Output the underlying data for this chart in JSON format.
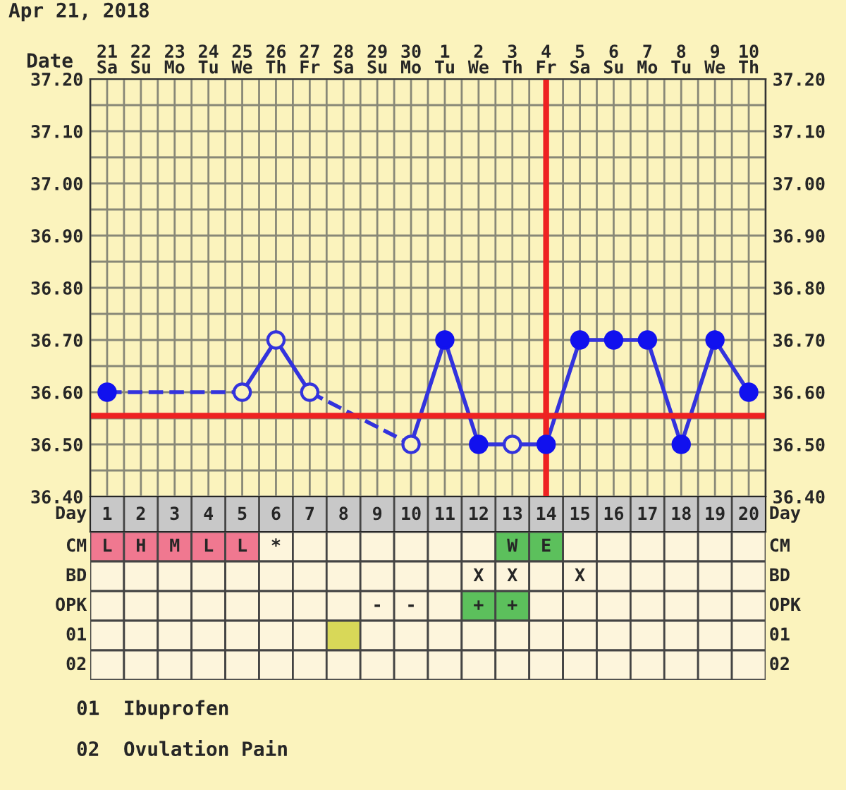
{
  "chart_data": [
    {
      "type": "line",
      "title": "Apr 21, 2018",
      "xlabel": "Date",
      "categories": [
        "21\nSa",
        "22\nSu",
        "23\nMo",
        "24\nTu",
        "25\nWe",
        "26\nTh",
        "27\nFr",
        "28\nSa",
        "29\nSu",
        "30\nMo",
        "1\nTu",
        "2\nWe",
        "3\nTh",
        "4\nFr",
        "5\nSa",
        "6\nSu",
        "7\nMo",
        "8\nTu",
        "9\nWe",
        "10\nTh"
      ],
      "series": [
        {
          "type": "line",
          "color": "#3333dd",
          "marker": "none",
          "line_style": "solid",
          "values": [
            36.6,
            null,
            null,
            null,
            36.6,
            36.7,
            36.6,
            null,
            null,
            36.5,
            36.7,
            36.5,
            36.5,
            36.5,
            36.7,
            36.7,
            36.7,
            36.5,
            36.7,
            36.6
          ]
        },
        {
          "type": "scatter",
          "color": "#1111ee",
          "marker": "circle",
          "values": [
            36.6,
            null,
            null,
            null,
            null,
            null,
            null,
            null,
            null,
            null,
            36.7,
            36.5,
            null,
            36.5,
            36.7,
            36.7,
            36.7,
            36.5,
            36.7,
            36.6
          ]
        },
        {
          "type": "scatter",
          "color": "#3333dd",
          "marker": "circle",
          "colors": [
            "#fbf3bd",
            "#fbf3bd",
            "#fbf3bd",
            "#fbf3bd",
            "#fbf3bd",
            "#fbf3bd",
            "#fbf3bd",
            "#fbf3bd",
            "#fbf3bd",
            "#fbf3bd",
            "#fbf3bd",
            "#fbf3bd",
            "#fbf3bd",
            "#fbf3bd",
            "#fbf3bd",
            "#fbf3bd",
            "#fbf3bd",
            "#fbf3bd",
            "#fbf3bd",
            "#fbf3bd"
          ],
          "values": [
            null,
            null,
            null,
            null,
            36.6,
            36.7,
            36.6,
            null,
            null,
            36.5,
            null,
            null,
            36.5,
            null,
            null,
            null,
            null,
            null,
            null,
            null
          ]
        }
      ],
      "ylim": [
        36.4,
        37.2
      ],
      "yticks": [
        {
          "value": 36.4,
          "label": "36.40"
        },
        {
          "value": 36.45,
          "label": null
        },
        {
          "value": 36.5,
          "label": "36.50"
        },
        {
          "value": 36.55,
          "label": null
        },
        {
          "value": 36.6,
          "label": "36.60"
        },
        {
          "value": 36.65,
          "label": null
        },
        {
          "value": 36.7,
          "label": "36.70"
        },
        {
          "value": 36.75,
          "label": null
        },
        {
          "value": 36.8,
          "label": "36.80"
        },
        {
          "value": 36.85,
          "label": null
        },
        {
          "value": 36.9,
          "label": "36.90"
        },
        {
          "value": 36.95,
          "label": null
        },
        {
          "value": 37.0,
          "label": "37.00"
        },
        {
          "value": 37.05,
          "label": null
        },
        {
          "value": 37.1,
          "label": "37.10"
        },
        {
          "value": 37.15,
          "label": null
        },
        {
          "value": 37.2,
          "label": "37.20"
        }
      ],
      "y2lim": [
        36.4,
        37.2
      ],
      "y2ticks": [
        {
          "value": 36.4,
          "label": "36.40"
        },
        {
          "value": 36.45,
          "label": null
        },
        {
          "value": 36.5,
          "label": "36.50"
        },
        {
          "value": 36.55,
          "label": null
        },
        {
          "value": 36.6,
          "label": "36.60"
        },
        {
          "value": 36.65,
          "label": null
        },
        {
          "value": 36.7,
          "label": "36.70"
        },
        {
          "value": 36.75,
          "label": null
        },
        {
          "value": 36.8,
          "label": "36.80"
        },
        {
          "value": 36.85,
          "label": null
        },
        {
          "value": 36.9,
          "label": "36.90"
        },
        {
          "value": 36.95,
          "label": null
        },
        {
          "value": 37.0,
          "label": "37.00"
        },
        {
          "value": 37.05,
          "label": null
        },
        {
          "value": 37.1,
          "label": "37.10"
        },
        {
          "value": 37.15,
          "label": null
        },
        {
          "value": 37.2,
          "label": "37.20"
        }
      ],
      "grid": true,
      "ref_lines": [
        {
          "axis": "y",
          "value": 36.555,
          "color": "#ee2222"
        },
        {
          "axis": "x",
          "value": "4\nFr",
          "color": "#ee2222"
        }
      ]
    },
    {
      "type": "heatmap",
      "xlabel": "Day",
      "cells": [
        [
          null,
          null,
          null,
          null,
          null,
          null,
          null,
          null,
          null,
          null,
          null,
          null,
          null,
          null,
          null,
          null,
          null,
          null,
          null,
          null
        ],
        [
          null,
          null,
          null,
          null,
          null,
          null,
          null,
          null,
          null,
          null,
          null,
          null,
          null,
          null,
          null,
          null,
          null,
          null,
          null,
          null
        ],
        [
          null,
          null,
          null,
          null,
          null,
          null,
          null,
          null,
          null,
          null,
          null,
          null,
          null,
          null,
          null,
          null,
          null,
          null,
          null,
          null
        ],
        [
          null,
          null,
          null,
          null,
          null,
          null,
          null,
          null,
          null,
          null,
          null,
          null,
          null,
          null,
          null,
          null,
          null,
          null,
          null,
          null
        ],
        [
          null,
          null,
          null,
          null,
          null,
          null,
          null,
          null,
          null,
          null,
          null,
          null,
          null,
          null,
          null,
          null,
          null,
          null,
          null,
          null
        ]
      ],
      "categories": [
        "1",
        "2",
        "3",
        "4",
        "5",
        "6",
        "7",
        "8",
        "9",
        "10",
        "11",
        "12",
        "13",
        "14",
        "15",
        "16",
        "17",
        "18",
        "19",
        "20"
      ],
      "y_categories": [
        "CM",
        "BD",
        "OPK",
        "01",
        "02"
      ],
      "y2_categories": [
        "CM",
        "BD",
        "OPK",
        "01",
        "02"
      ],
      "color": "#fdf5dc",
      "cell_labels": [
        [
          "L",
          "H",
          "M",
          "L",
          "L",
          "*",
          null,
          null,
          null,
          null,
          null,
          null,
          "W",
          "E",
          null,
          null,
          null,
          null,
          null,
          null
        ],
        [
          null,
          null,
          null,
          null,
          null,
          null,
          null,
          null,
          null,
          null,
          null,
          "X",
          "X",
          null,
          "X",
          null,
          null,
          null,
          null,
          null
        ],
        [
          null,
          null,
          null,
          null,
          null,
          null,
          null,
          null,
          "-",
          "-",
          null,
          "+",
          "+",
          null,
          null,
          null,
          null,
          null,
          null,
          null
        ],
        [
          null,
          null,
          null,
          null,
          null,
          null,
          null,
          null,
          null,
          null,
          null,
          null,
          null,
          null,
          null,
          null,
          null,
          null,
          null,
          null
        ],
        [
          null,
          null,
          null,
          null,
          null,
          null,
          null,
          null,
          null,
          null,
          null,
          null,
          null,
          null,
          null,
          null,
          null,
          null,
          null,
          null
        ]
      ],
      "colors": [
        [
          "#f07890",
          "#f07890",
          "#f07890",
          "#f07890",
          "#f07890",
          null,
          null,
          null,
          null,
          null,
          null,
          null,
          "#5cc05c",
          "#5cc05c",
          null,
          null,
          null,
          null,
          null,
          null
        ],
        [
          null,
          null,
          null,
          null,
          null,
          null,
          null,
          null,
          null,
          null,
          null,
          null,
          null,
          null,
          null,
          null,
          null,
          null,
          null,
          null
        ],
        [
          null,
          null,
          null,
          null,
          null,
          null,
          null,
          null,
          null,
          null,
          null,
          "#5cc05c",
          "#5cc05c",
          null,
          null,
          null,
          null,
          null,
          null,
          null
        ],
        [
          null,
          null,
          null,
          null,
          null,
          null,
          null,
          "#d8d858",
          null,
          null,
          null,
          null,
          null,
          null,
          null,
          null,
          null,
          null,
          null,
          null
        ],
        [
          null,
          null,
          null,
          null,
          null,
          null,
          null,
          null,
          null,
          null,
          null,
          null,
          null,
          null,
          null,
          null,
          null,
          null,
          null,
          null
        ]
      ],
      "annotations": [
        "01  Ibuprofen",
        "02  Ovulation Pain"
      ]
    }
  ]
}
